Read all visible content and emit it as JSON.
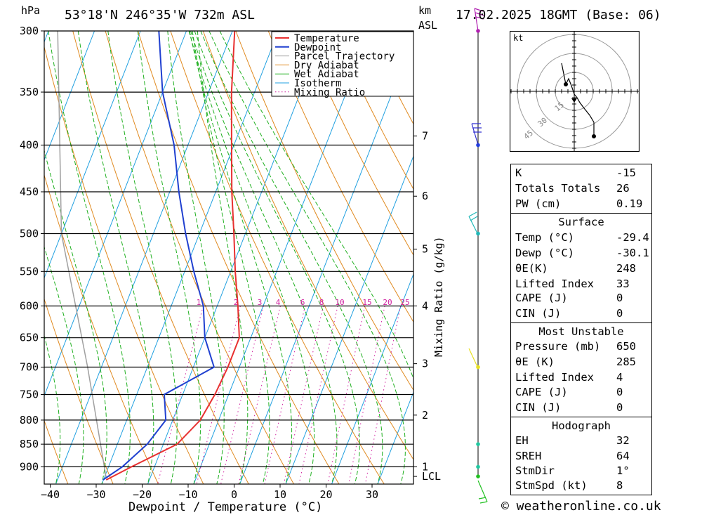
{
  "header": {
    "hpa_label": "hPa",
    "location": "53°18'N  246°35'W  732m  ASL",
    "km_label": "km",
    "asl_label": "ASL",
    "datetime": "17.02.2025  18GMT  (Base: 06)"
  },
  "footer": {
    "credit": "© weatheronline.co.uk"
  },
  "chart_data": {
    "type": "line",
    "xlabel": "Dewpoint / Temperature (°C)",
    "ylabel_right": "Mixing Ratio (g/kg)",
    "pressure_levels": [
      300,
      350,
      400,
      450,
      500,
      550,
      600,
      650,
      700,
      750,
      800,
      850,
      900
    ],
    "temperature_ticks": [
      -40,
      -30,
      -20,
      -10,
      0,
      10,
      20,
      30
    ],
    "km_ticks": [
      {
        "label": "7",
        "p": 391
      },
      {
        "label": "6",
        "p": 455
      },
      {
        "label": "5",
        "p": 520
      },
      {
        "label": "4",
        "p": 600
      },
      {
        "label": "3",
        "p": 694
      },
      {
        "label": "2",
        "p": 790
      },
      {
        "label": "1",
        "p": 900
      },
      {
        "label": "LCL",
        "p": 922
      }
    ],
    "mixing_ratio_labels": [
      "1",
      "2",
      "3",
      "4",
      "6",
      "8",
      "10",
      "15",
      "20",
      "25"
    ],
    "mixing_ratio_values": [
      1,
      2,
      3,
      4,
      6,
      8,
      10,
      15,
      20,
      25
    ],
    "legend": [
      "Temperature",
      "Dewpoint",
      "Parcel Trajectory",
      "Dry Adiabat",
      "Wet Adiabat",
      "Isotherm",
      "Mixing Ratio"
    ],
    "series": [
      {
        "name": "Temperature",
        "color": "#e83030",
        "points": [
          [
            -29.4,
            930
          ],
          [
            -25,
            900
          ],
          [
            -17,
            850
          ],
          [
            -14,
            800
          ],
          [
            -13,
            750
          ],
          [
            -12.5,
            700
          ],
          [
            -12.5,
            650
          ],
          [
            -15.5,
            600
          ],
          [
            -19,
            550
          ],
          [
            -22.5,
            500
          ],
          [
            -26.5,
            450
          ],
          [
            -30.5,
            400
          ],
          [
            -35,
            350
          ],
          [
            -39.5,
            300
          ]
        ]
      },
      {
        "name": "Dewpoint",
        "color": "#2040d0",
        "points": [
          [
            -30.1,
            930
          ],
          [
            -27,
            900
          ],
          [
            -23.5,
            850
          ],
          [
            -21.5,
            800
          ],
          [
            -24,
            750
          ],
          [
            -15.5,
            700
          ],
          [
            -20,
            650
          ],
          [
            -23,
            600
          ],
          [
            -28,
            550
          ],
          [
            -33,
            500
          ],
          [
            -38,
            450
          ],
          [
            -43,
            400
          ],
          [
            -50,
            350
          ],
          [
            -56,
            300
          ]
        ]
      }
    ],
    "wind_dots": [
      {
        "p": 300,
        "color": "#b020b0"
      },
      {
        "p": 400,
        "color": "#2040e0"
      },
      {
        "p": 500,
        "color": "#20b8b8"
      },
      {
        "p": 700,
        "color": "#e8e020"
      },
      {
        "p": 850,
        "color": "#20c8a0"
      },
      {
        "p": 900,
        "color": "#20c8a0"
      },
      {
        "p": 922,
        "color": "#20c020"
      }
    ]
  },
  "hodograph": {
    "unit": "kt",
    "ring_labels": [
      "15",
      "30",
      "45"
    ]
  },
  "indices": {
    "top": [
      {
        "label": "K",
        "value": "-15"
      },
      {
        "label": "Totals Totals",
        "value": "26"
      },
      {
        "label": "PW (cm)",
        "value": "0.19"
      }
    ],
    "surface_title": "Surface",
    "surface": [
      {
        "label": "Temp (°C)",
        "value": "-29.4"
      },
      {
        "label": "Dewp (°C)",
        "value": "-30.1"
      },
      {
        "label": "θE(K)",
        "value": "248"
      },
      {
        "label": "Lifted Index",
        "value": "33"
      },
      {
        "label": "CAPE (J)",
        "value": "0"
      },
      {
        "label": "CIN (J)",
        "value": "0"
      }
    ],
    "unstable_title": "Most Unstable",
    "unstable": [
      {
        "label": "Pressure (mb)",
        "value": "650"
      },
      {
        "label": "θE (K)",
        "value": "285"
      },
      {
        "label": "Lifted Index",
        "value": "4"
      },
      {
        "label": "CAPE (J)",
        "value": "0"
      },
      {
        "label": "CIN (J)",
        "value": "0"
      }
    ],
    "hodo_title": "Hodograph",
    "hodo": [
      {
        "label": "EH",
        "value": "32"
      },
      {
        "label": "SREH",
        "value": "64"
      },
      {
        "label": "StmDir",
        "value": "1°"
      },
      {
        "label": "StmSpd (kt)",
        "value": "8"
      }
    ]
  },
  "colors": {
    "temperature": "#e83030",
    "dewpoint": "#2040d0",
    "parcel": "#a0a0a0",
    "dry_adiabat": "#e08a20",
    "wet_adiabat": "#20b020",
    "isotherm": "#20a0e0",
    "mixing_ratio": "#d020a0"
  }
}
